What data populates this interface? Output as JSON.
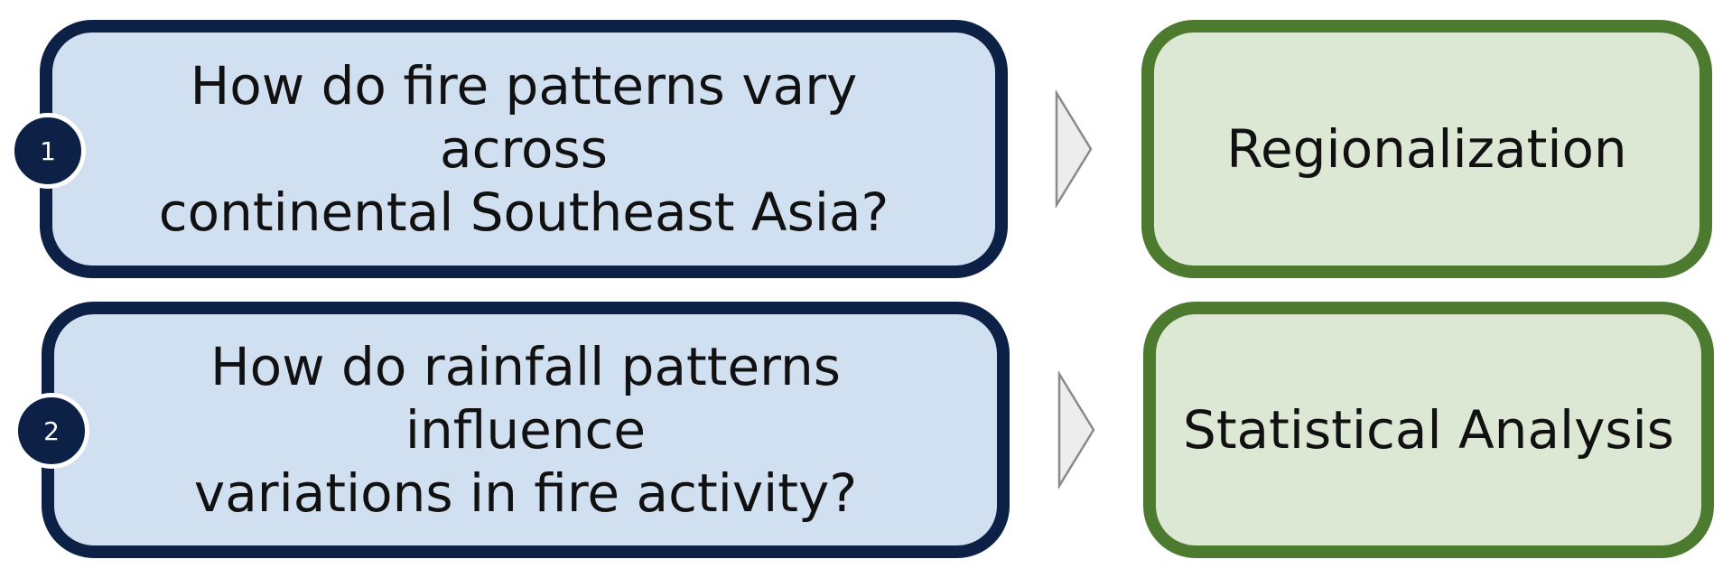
{
  "colors": {
    "question_border": "#0d2146",
    "question_fill": "#d1e0f1",
    "method_border": "#4c7a2e",
    "method_fill": "#dde8d4",
    "arrow_fill": "#ededed",
    "arrow_stroke": "#8a8a8a"
  },
  "rows": [
    {
      "number": "1",
      "question_line1": "How do fire patterns vary across",
      "question_line2": "continental Southeast Asia?",
      "method": "Regionalization"
    },
    {
      "number": "2",
      "question_line1": "How do rainfall patterns influence",
      "question_line2": "variations in fire activity?",
      "method": "Statistical Analysis"
    }
  ]
}
